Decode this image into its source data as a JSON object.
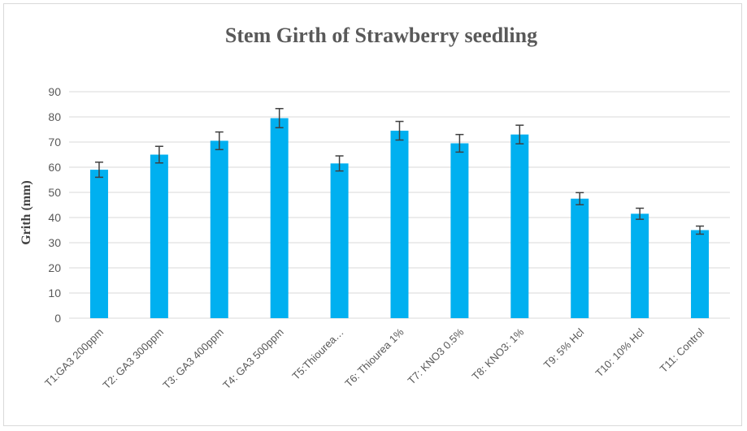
{
  "chart_data": {
    "type": "bar",
    "title": "Stem Girth of Strawberry seedling",
    "xlabel": "",
    "ylabel": "Grith (mm)",
    "ylim": [
      0,
      90
    ],
    "yticks": [
      0,
      10,
      20,
      30,
      40,
      50,
      60,
      70,
      80,
      90
    ],
    "grid": true,
    "categories": [
      "T1:GA3 200ppm",
      "T2: GA3 300ppm",
      "T3: GA3 400ppm",
      "T4: GA3 500ppm",
      "T5:Thiourea…",
      "T6: Thiourea 1%",
      "T7: KNO3 0.5%",
      "T8: KNO3: 1%",
      "T9: 5% Hcl",
      "T10: 10% Hcl",
      "T11: Control"
    ],
    "values": [
      59,
      65,
      70.5,
      79.5,
      61.5,
      74.5,
      69.5,
      73,
      47.5,
      41.5,
      35
    ],
    "errors": [
      3,
      3.3,
      3.5,
      3.8,
      3,
      3.7,
      3.5,
      3.7,
      2.4,
      2.2,
      1.6
    ],
    "colors": {
      "bar": "#00b0f0",
      "error_bar": "#404040",
      "grid": "#d9d9d9",
      "axis_text": "#595959"
    }
  }
}
